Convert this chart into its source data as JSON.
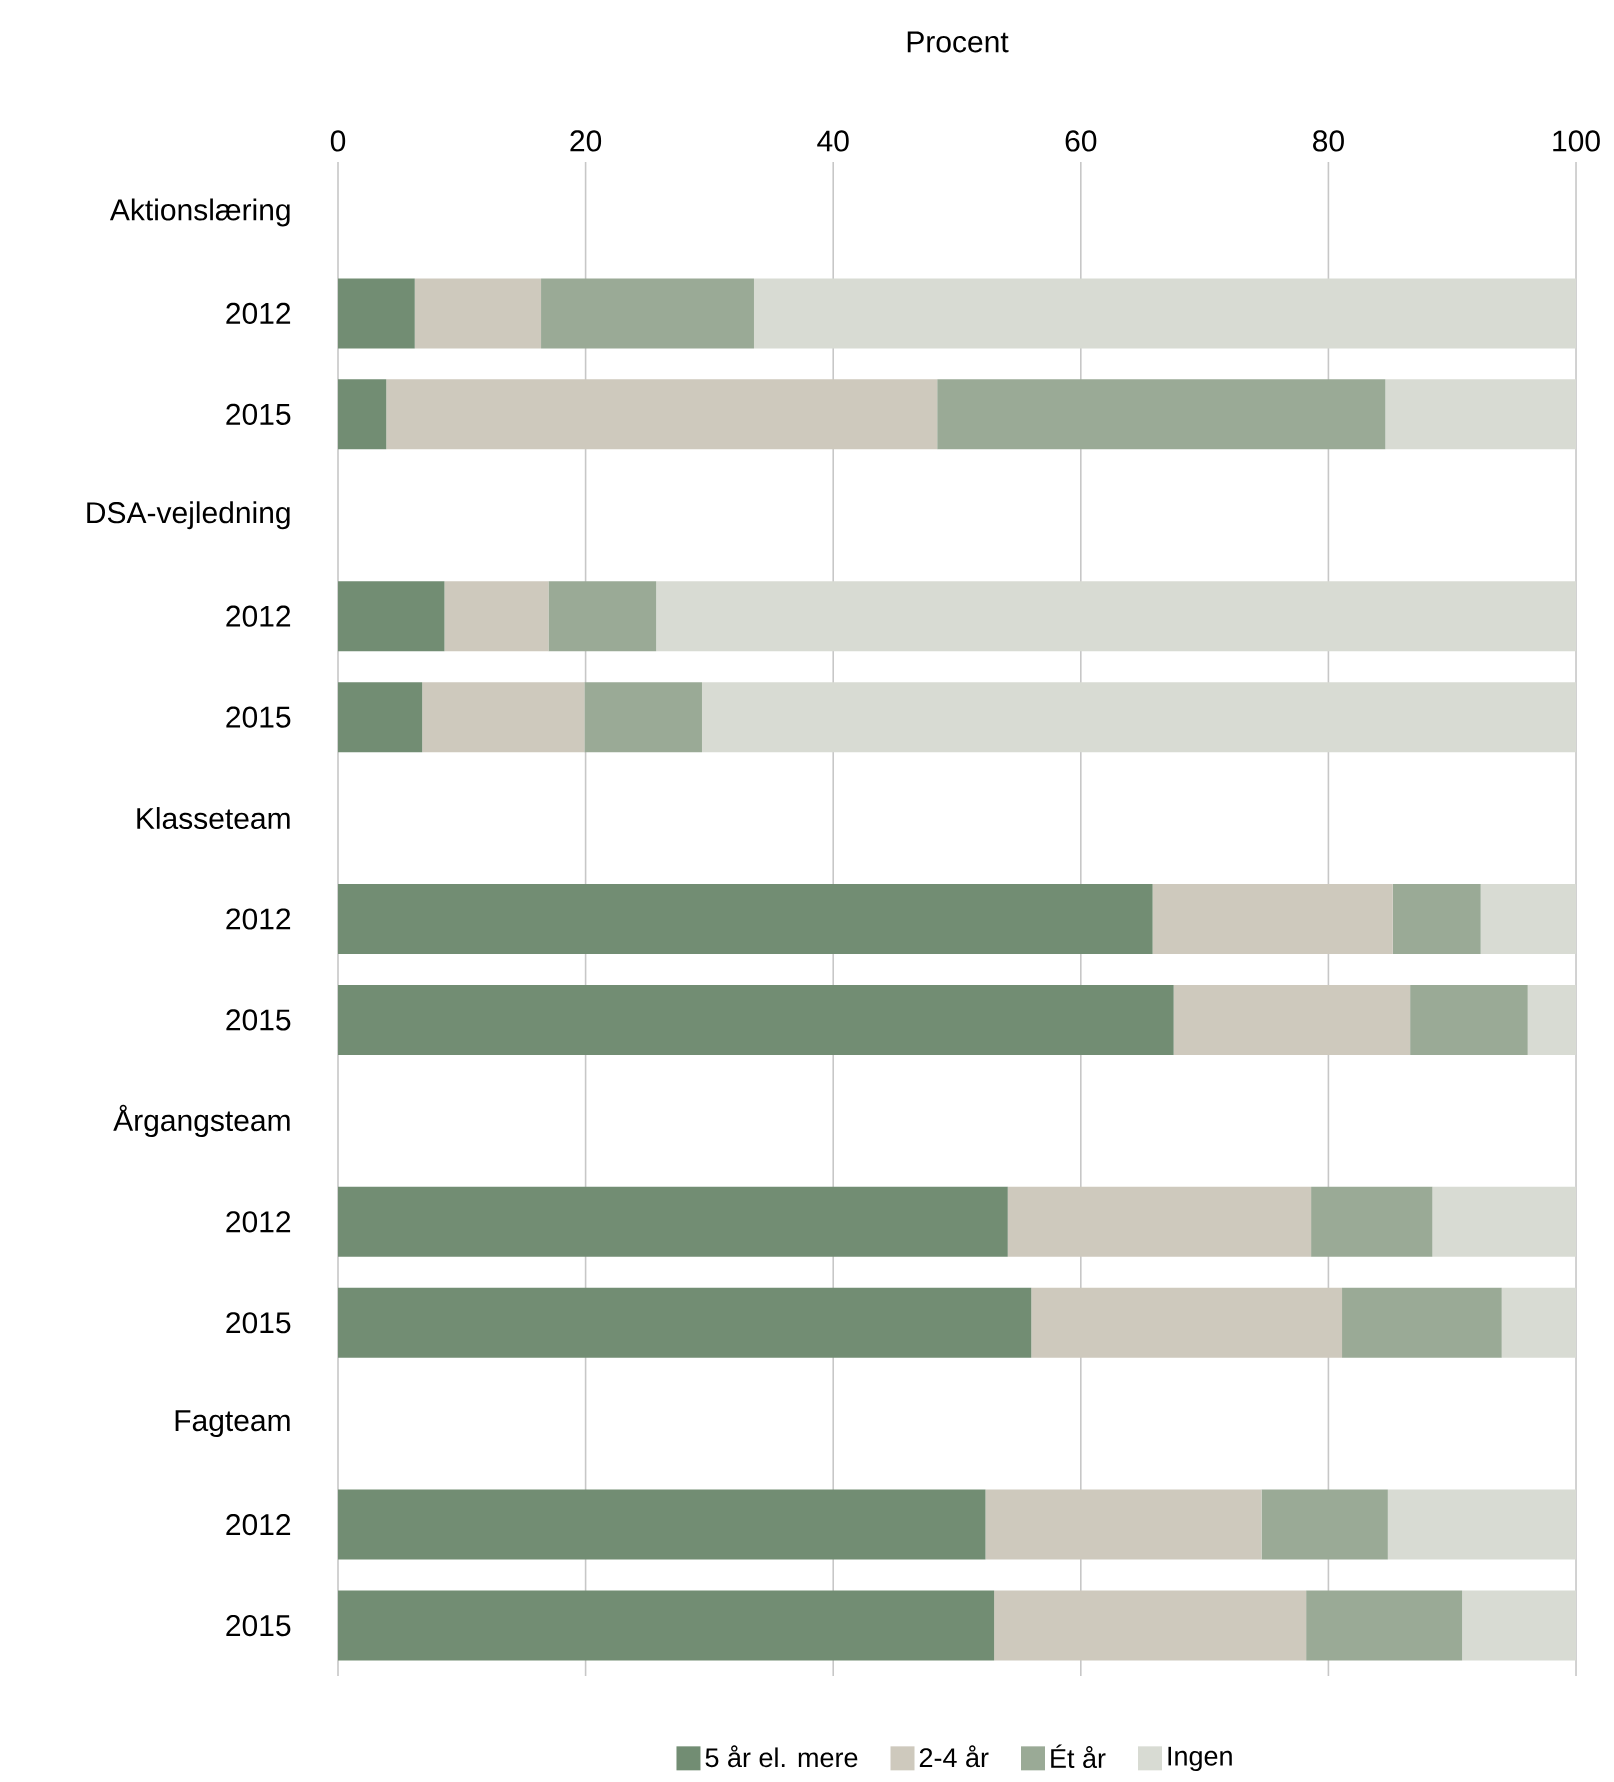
{
  "chart_data": {
    "type": "bar",
    "orientation": "horizontal",
    "stacked": true,
    "xlabel": "Procent",
    "categories": [
      "Aktionslæring",
      "2012",
      "2015",
      "DSA-vejledning",
      "2012",
      "2015",
      "Klasseteam",
      "2012",
      "2015",
      "Årgangsteam",
      "2012",
      "2015",
      "Fagteam",
      "2012",
      "2015"
    ],
    "series": [
      {
        "name": "5 år el. mere",
        "color": "#728d73",
        "values": [
          null,
          6.2,
          3.9,
          null,
          8.6,
          6.8,
          null,
          65.8,
          67.5,
          null,
          54.1,
          56.0,
          null,
          52.3,
          53.0
        ]
      },
      {
        "name": "2-4 år",
        "color": "#cec9bd",
        "values": [
          null,
          10.2,
          44.5,
          null,
          8.4,
          13.1,
          null,
          19.4,
          19.1,
          null,
          24.5,
          25.1,
          null,
          22.3,
          25.2
        ]
      },
      {
        "name": "Ét år",
        "color": "#9aaa96",
        "values": [
          null,
          17.2,
          36.2,
          null,
          8.7,
          9.5,
          null,
          7.1,
          9.5,
          null,
          9.8,
          12.9,
          null,
          10.2,
          12.6
        ]
      },
      {
        "name": "Ingen",
        "color": "#d8dbd3",
        "values": [
          null,
          66.4,
          15.4,
          null,
          74.3,
          70.6,
          null,
          7.7,
          3.9,
          null,
          11.6,
          6.0,
          null,
          15.2,
          9.2
        ]
      }
    ],
    "xlim": [
      0,
      100
    ],
    "xticks": [
      0,
      20,
      40,
      60,
      80,
      100
    ],
    "grid": "x",
    "legend": "bottom"
  }
}
